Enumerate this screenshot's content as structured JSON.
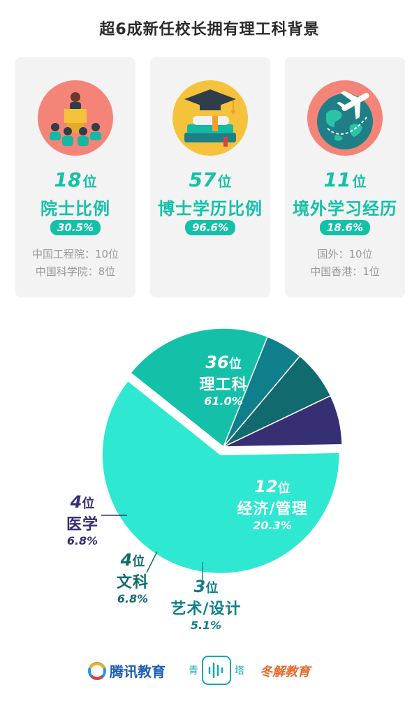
{
  "title": "超6成新任校长拥有理工科背景",
  "cards": [
    {
      "count": "18",
      "unit": "位",
      "label": "院士比例",
      "pct": "30.5%",
      "details": [
        "中国工程院：10位",
        "中国科学院：8位"
      ]
    },
    {
      "count": "57",
      "unit": "位",
      "label": "博士学历比例",
      "pct": "96.6%",
      "details": []
    },
    {
      "count": "11",
      "unit": "位",
      "label": "境外学习经历",
      "pct": "18.6%",
      "details": [
        "国外：10位",
        "中国香港：1位"
      ]
    }
  ],
  "chart_data": {
    "type": "pie",
    "slices": [
      {
        "name": "理工科",
        "count": 36,
        "unit": "位",
        "percent": 61.0,
        "percent_label": "61.0%",
        "color": "#2ee8d2"
      },
      {
        "name": "经济/管理",
        "count": 12,
        "unit": "位",
        "percent": 20.3,
        "percent_label": "20.3%",
        "color": "#14c1a8"
      },
      {
        "name": "艺术/设计",
        "count": 3,
        "unit": "位",
        "percent": 5.1,
        "percent_label": "5.1%",
        "color": "#0f7f8c"
      },
      {
        "name": "文科",
        "count": 4,
        "unit": "位",
        "percent": 6.8,
        "percent_label": "6.8%",
        "color": "#116b6e"
      },
      {
        "name": "医学",
        "count": 4,
        "unit": "位",
        "percent": 6.8,
        "percent_label": "6.8%",
        "color": "#362f73"
      }
    ]
  },
  "logos": {
    "tencent": "腾讯教育",
    "qingta_left": "青",
    "qingta_right": "塔",
    "dongjie": "冬解教育"
  }
}
